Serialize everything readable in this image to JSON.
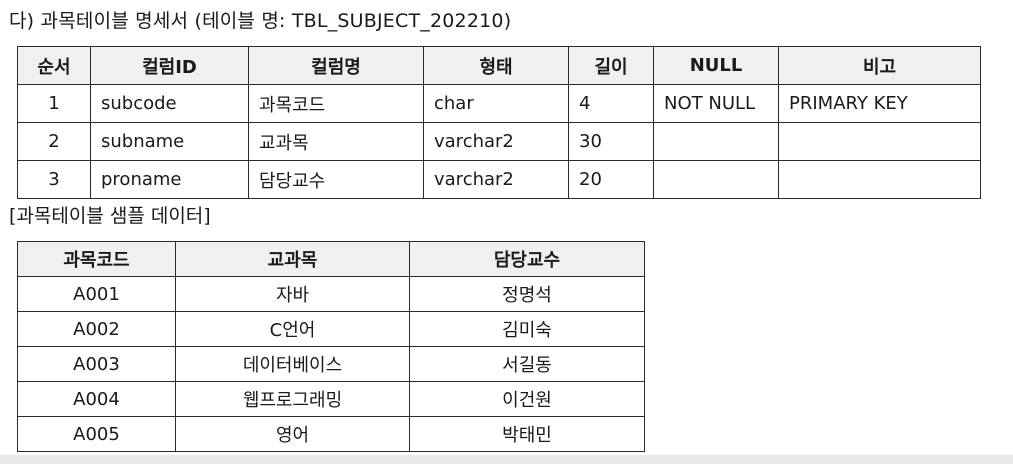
{
  "spec_heading": "다) 과목테이블 명세서 (테이블 명: TBL_SUBJECT_202210)",
  "spec_table": {
    "headers": [
      "순서",
      "컬럼ID",
      "컬럼명",
      "형태",
      "길이",
      "NULL",
      "비고"
    ],
    "rows": [
      [
        "1",
        "subcode",
        "과목코드",
        "char",
        "4",
        "NOT NULL",
        "PRIMARY KEY"
      ],
      [
        "2",
        "subname",
        "교과목",
        "varchar2",
        "30",
        "",
        ""
      ],
      [
        "3",
        "proname",
        "담당교수",
        "varchar2",
        "20",
        "",
        ""
      ]
    ]
  },
  "sample_caption": "[과목테이블 샘플 데이터]",
  "sample_table": {
    "headers": [
      "과목코드",
      "교과목",
      "담당교수"
    ],
    "rows": [
      [
        "A001",
        "자바",
        "정명석"
      ],
      [
        "A002",
        "C언어",
        "김미숙"
      ],
      [
        "A003",
        "데이터베이스",
        "서길동"
      ],
      [
        "A004",
        "웹프로그래밍",
        "이건원"
      ],
      [
        "A005",
        "영어",
        "박태민"
      ]
    ]
  }
}
